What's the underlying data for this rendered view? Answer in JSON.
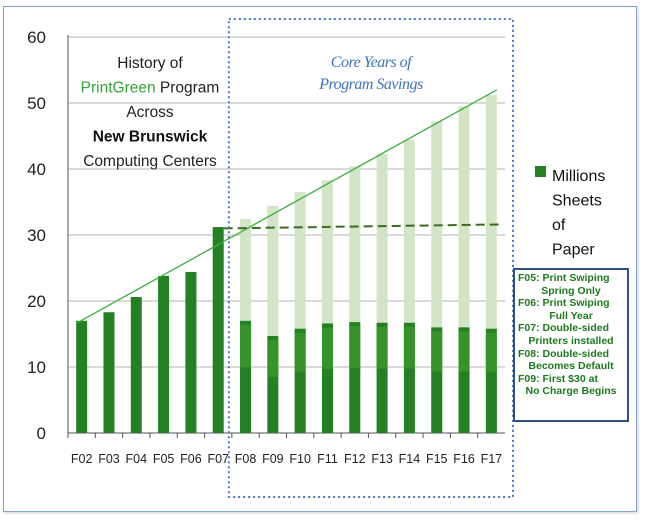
{
  "chart_data": {
    "type": "bar",
    "categories": [
      "F02",
      "F03",
      "F04",
      "F05",
      "F06",
      "F07",
      "F08",
      "F09",
      "F10",
      "F11",
      "F12",
      "F13",
      "F14",
      "F15",
      "F16",
      "F17"
    ],
    "series": [
      {
        "name": "Millions Sheets of Paper",
        "values": [
          17,
          18.3,
          20.6,
          23.8,
          24.4,
          31.2,
          17,
          14.7,
          15.8,
          16.6,
          16.8,
          16.7,
          16.7,
          16,
          16,
          15.8
        ]
      }
    ],
    "projected_usage": [
      null,
      null,
      null,
      null,
      null,
      null,
      32.4,
      34.4,
      36.5,
      38.3,
      40.4,
      42.3,
      44.4,
      47.2,
      49.5,
      51.2
    ],
    "trend_line": {
      "x": [
        "F02",
        "F17"
      ],
      "y": [
        16.6,
        52
      ]
    },
    "flat_line": {
      "x": [
        "F07",
        "F17"
      ],
      "y": [
        31,
        31.6
      ]
    },
    "ylim": [
      0,
      60
    ],
    "yticks": [
      0,
      10,
      20,
      30,
      40,
      50,
      60
    ],
    "grid": true,
    "legend": {
      "position": "right",
      "label_lines": [
        "Millions",
        "Sheets",
        "of",
        "Paper"
      ]
    },
    "title_lines": [
      {
        "parts": [
          {
            "text": "History of",
            "style": "normal"
          }
        ]
      },
      {
        "parts": [
          {
            "text": "PrintGreen",
            "style": "green"
          },
          {
            "text": " Program",
            "style": "normal"
          }
        ]
      },
      {
        "parts": [
          {
            "text": "Across",
            "style": "normal"
          }
        ]
      },
      {
        "parts": [
          {
            "text": "New Brunswick",
            "style": "bold"
          }
        ]
      },
      {
        "parts": [
          {
            "text": "Computing Centers",
            "style": "normal"
          }
        ]
      }
    ],
    "highlight_region": {
      "from": "F08",
      "to": "F17",
      "label_lines": [
        "Core Years of",
        "Program Savings"
      ]
    },
    "annotations": [
      {
        "lines": [
          "F05: Print Swiping",
          "Spring Only"
        ]
      },
      {
        "lines": [
          "F06:  Print Swiping",
          "Full Year"
        ]
      },
      {
        "lines": [
          "F07: Double-sided",
          "Printers  installed"
        ]
      },
      {
        "lines": [
          "F08: Double-sided",
          "Becomes  Default"
        ]
      },
      {
        "lines": [
          "F09: First $30 at",
          "No Charge Begins"
        ]
      }
    ],
    "colors": {
      "bar": "#238023",
      "bar_light": "#3e9a2e",
      "ghost": "#d3e5c7",
      "trend": "#3cae3c",
      "flat": "#3d6b22",
      "grid": "#b5b5b5",
      "highlight_border": "#4a78c2",
      "highlight_text": "#3d73b7",
      "title_green": "#35a535",
      "text": "#222222",
      "annotation_text": "#1e7a1e",
      "annotation_border": "#2d4f8a"
    }
  }
}
